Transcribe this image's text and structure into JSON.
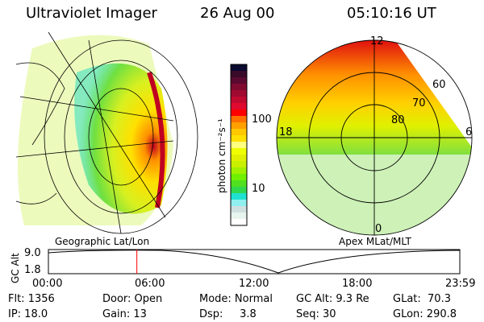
{
  "header": {
    "instrument": "Ultraviolet Imager",
    "date": "26 Aug 00",
    "time": "05:10:16 UT"
  },
  "colorbar": {
    "label": "photon cm⁻²s⁻¹",
    "ticks": [
      "100",
      "10"
    ],
    "colors": [
      "#0a0a30",
      "#3a0a2a",
      "#5a0a30",
      "#800a30",
      "#a00a30",
      "#c00a30",
      "#e00a30",
      "#ff0000",
      "#ff7000",
      "#ffa000",
      "#ffc800",
      "#ffe000",
      "#ffff80",
      "#f0ff00",
      "#e0f000",
      "#c8f000",
      "#a0f000",
      "#70f000",
      "#50e020",
      "#30d850",
      "#20e0d0",
      "#90f0f0",
      "#d0e0e0",
      "#e8f4ee",
      "#ffffff"
    ]
  },
  "polar": {
    "labels": {
      "mlt12": "12",
      "mlt18": "18",
      "mlt6": "6",
      "mlt0": "0",
      "lat60": "60",
      "lat70": "70",
      "lat80": "80"
    }
  },
  "left_label": "Geographic Lat/Lon",
  "right_label": "Apex MLat/MLT",
  "alt_plot": {
    "ylabel": "GC Alt",
    "yticks": [
      "9.0",
      "1.8"
    ],
    "xticks": [
      "00:00",
      "06:00",
      "12:00",
      "18:00",
      "23:59"
    ],
    "current_time_fraction": 0.215,
    "line_color": "#ff0000"
  },
  "info": {
    "flt": "Flt: 1356",
    "ip": "IP: 18.0",
    "door": "Door: Open",
    "gain": "Gain: 13",
    "mode": "Mode: Normal",
    "dsp": "Dsp:     3.8",
    "gcalt": "GC Alt: 9.3 Re",
    "seq": "Seq: 30",
    "glat": "GLat:  70.3",
    "glon": "GLon: 290.8"
  }
}
